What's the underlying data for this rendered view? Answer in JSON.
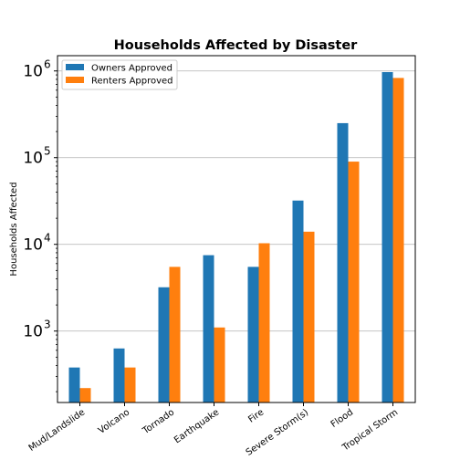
{
  "chart_data": {
    "type": "bar",
    "title": "Households Affected by Disaster",
    "xlabel": "",
    "ylabel": "Households Affected",
    "yscale": "log",
    "ylim": [
      150,
      1500000
    ],
    "yticks": [
      {
        "base": "10",
        "exp": "3",
        "value": 1000
      },
      {
        "base": "10",
        "exp": "4",
        "value": 10000
      },
      {
        "base": "10",
        "exp": "5",
        "value": 100000
      },
      {
        "base": "10",
        "exp": "6",
        "value": 1000000
      }
    ],
    "grid": "y-major",
    "legend_position": "top-left",
    "categories": [
      "Mud/Landslide",
      "Volcano",
      "Tornado",
      "Earthquake",
      "Fire",
      "Severe Storm(s)",
      "Flood",
      "Tropical Storm"
    ],
    "series": [
      {
        "name": "Owners Approved",
        "color": "#1f77b4",
        "values": [
          380,
          630,
          3200,
          7500,
          5500,
          32000,
          250000,
          970000
        ]
      },
      {
        "name": "Renters Approved",
        "color": "#ff7f0e",
        "values": [
          220,
          380,
          5500,
          1100,
          10300,
          14000,
          90000,
          830000
        ]
      }
    ]
  }
}
